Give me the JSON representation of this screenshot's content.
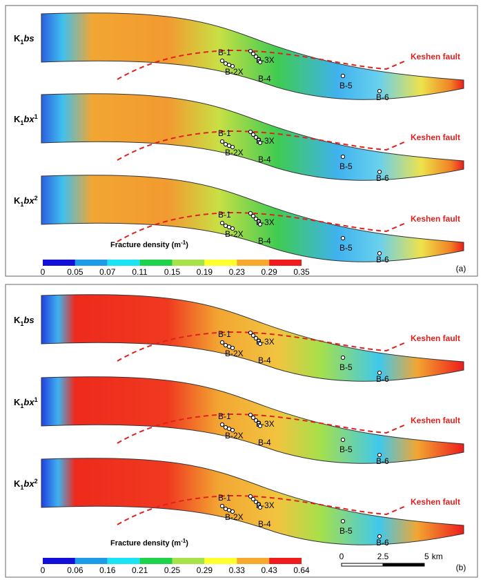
{
  "layers": [
    {
      "letter": "K",
      "subscript": "1",
      "name": "bs"
    },
    {
      "letter": "K",
      "subscript": "1",
      "name": "bx",
      "superscript": "1"
    },
    {
      "letter": "K",
      "subscript": "1",
      "name": "bx",
      "superscript": "2"
    }
  ],
  "wells": [
    "B-1",
    "B-2X",
    "B-3X",
    "B-4",
    "B-5",
    "B-6"
  ],
  "fault_label": "Keshen fault",
  "legend_title": {
    "text": "Fracture density (m",
    "superscript": "-1",
    "end": ")"
  },
  "panels": [
    {
      "label": "(a)",
      "ticks": [
        0,
        0.05,
        0.07,
        0.11,
        0.15,
        0.19,
        0.23,
        0.29,
        0.35
      ],
      "colors": [
        "#1010d8",
        "#1e9be6",
        "#19e3f5",
        "#1ed24a",
        "#a6e34a",
        "#ffff30",
        "#f7a92e",
        "#ee1c1c"
      ]
    },
    {
      "label": "(b)",
      "ticks": [
        0,
        0.06,
        0.16,
        0.21,
        0.25,
        0.29,
        0.33,
        0.43,
        0.64
      ],
      "colors": [
        "#1010d8",
        "#1e9be6",
        "#19e3f5",
        "#1ed24a",
        "#a6e34a",
        "#ffff30",
        "#f7a92e",
        "#ee1c1c"
      ]
    }
  ],
  "scale_bar": {
    "ticks": [
      0,
      2.5,
      5
    ],
    "unit": "km"
  }
}
